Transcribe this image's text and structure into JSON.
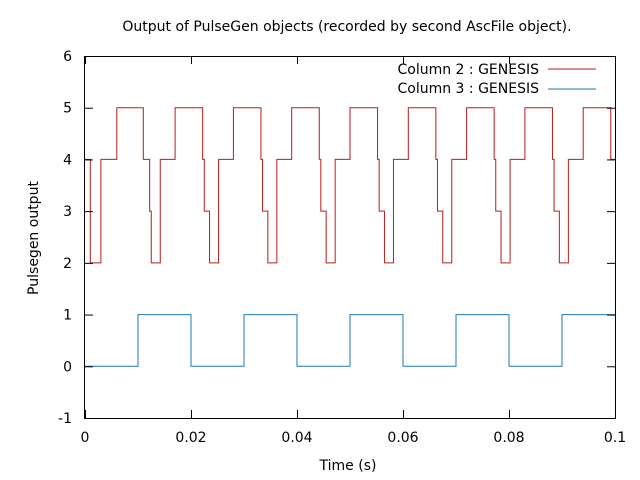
{
  "chart_data": {
    "type": "line",
    "title": "Output of PulseGen objects (recorded by second AscFile object).",
    "xlabel": "Time (s)",
    "ylabel": "Pulsegen output",
    "xlim": [
      0,
      0.1
    ],
    "ylim": [
      -1,
      6
    ],
    "xticks": [
      0,
      0.02,
      0.04,
      0.06,
      0.08,
      0.1
    ],
    "xtick_labels": [
      "0",
      "0.02",
      "0.04",
      "0.06",
      "0.08",
      "0.1"
    ],
    "yticks": [
      -1,
      0,
      1,
      2,
      3,
      4,
      5,
      6
    ],
    "ytick_labels": [
      "-1",
      "0",
      "1",
      "2",
      "3",
      "4",
      "5",
      "6"
    ],
    "grid": false,
    "legend_position": "top-right",
    "series": [
      {
        "name": "Column 2 : GENESIS",
        "color": "#b71c1c",
        "step": true,
        "x": [
          0,
          0.001,
          0.0011,
          0.003,
          0.006,
          0.011,
          0.0112,
          0.0122,
          0.0125,
          0.0142,
          0.017,
          0.0222,
          0.0225,
          0.0233,
          0.0235,
          0.0252,
          0.028,
          0.0332,
          0.0335,
          0.0343,
          0.0345,
          0.0362,
          0.039,
          0.0442,
          0.0445,
          0.0453,
          0.0455,
          0.0472,
          0.05,
          0.0552,
          0.0555,
          0.0563,
          0.0565,
          0.0582,
          0.061,
          0.0662,
          0.0665,
          0.0673,
          0.0675,
          0.0692,
          0.072,
          0.0772,
          0.0775,
          0.0783,
          0.0785,
          0.0802,
          0.083,
          0.0882,
          0.0885,
          0.0893,
          0.0895,
          0.0912,
          0.094,
          0.0992,
          0.0995,
          0.1
        ],
        "values": [
          4,
          2,
          2,
          4,
          5,
          4,
          4,
          3,
          2,
          4,
          5,
          4,
          3,
          3,
          2,
          4,
          5,
          4,
          3,
          3,
          2,
          4,
          5,
          4,
          3,
          3,
          2,
          4,
          5,
          4,
          3,
          3,
          2,
          4,
          5,
          4,
          3,
          3,
          2,
          4,
          5,
          4,
          3,
          3,
          2,
          4,
          5,
          4,
          3,
          3,
          2,
          4,
          5,
          4,
          4,
          4
        ]
      },
      {
        "name": "Column 3 : GENESIS",
        "color": "#1f77b4",
        "step": true,
        "x": [
          0,
          0.01,
          0.02,
          0.03,
          0.04,
          0.05,
          0.06,
          0.07,
          0.08,
          0.09,
          0.1
        ],
        "values": [
          0,
          1,
          0,
          1,
          0,
          1,
          0,
          1,
          0,
          1,
          1
        ]
      }
    ]
  }
}
